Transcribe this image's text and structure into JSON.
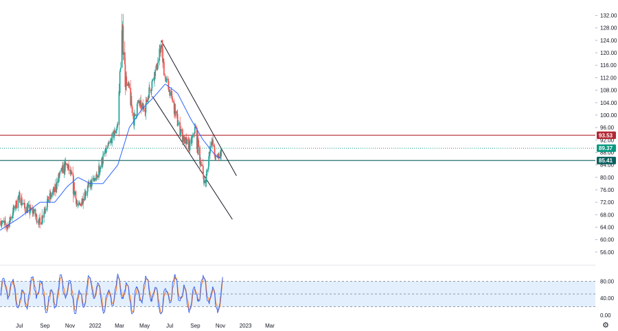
{
  "chart_data": [
    {
      "type": "candlestick",
      "series": [
        {
          "name": "",
          "kind": "candles"
        },
        {
          "name": "",
          "kind": "moving-average"
        }
      ],
      "ylim": [
        52,
        133
      ],
      "y_ticks": [
        "56.00",
        "60.00",
        "64.00",
        "68.00",
        "72.00",
        "76.00",
        "80.00",
        "84.00",
        "88.00",
        "92.00",
        "96.00",
        "100.00",
        "104.00",
        "108.00",
        "112.00",
        "116.00",
        "120.00",
        "124.00",
        "128.00",
        "132.00"
      ],
      "horizontal_levels": [
        {
          "label": "93.53",
          "value": 93.53,
          "color": "#b22833",
          "style": "solid"
        },
        {
          "label": "89.37",
          "value": 89.37,
          "color": "#089981",
          "style": "dotted"
        },
        {
          "label": "85.41",
          "value": 85.41,
          "color": "#0b5f5f",
          "style": "solid"
        }
      ],
      "channel": {
        "upper": {
          "from": [
            "2022-06-10",
            124.0
          ],
          "to": [
            "2022-12-10",
            80.5
          ]
        },
        "lower": {
          "from": [
            "2022-05-20",
            106.0
          ],
          "to": [
            "2022-11-30",
            66.5
          ]
        }
      },
      "ohlc_waypoints": {
        "dates": [
          "2021-05-15",
          "2021-06-01",
          "2021-07-01",
          "2021-07-15",
          "2021-08-05",
          "2021-08-20",
          "2021-09-05",
          "2021-09-25",
          "2021-10-10",
          "2021-10-25",
          "2021-11-05",
          "2021-11-20",
          "2021-12-01",
          "2021-12-15",
          "2022-01-05",
          "2022-01-25",
          "2022-02-10",
          "2022-02-25",
          "2022-03-05",
          "2022-03-08",
          "2022-03-15",
          "2022-03-25",
          "2022-04-05",
          "2022-04-15",
          "2022-05-01",
          "2022-05-15",
          "2022-06-01",
          "2022-06-10",
          "2022-06-20",
          "2022-07-05",
          "2022-07-20",
          "2022-08-05",
          "2022-08-20",
          "2022-09-01",
          "2022-09-10",
          "2022-09-25",
          "2022-10-10",
          "2022-10-20",
          "2022-11-03"
        ],
        "close": [
          66,
          64,
          74,
          70,
          69,
          65,
          72,
          76,
          82,
          84,
          80,
          70,
          73,
          77,
          80,
          88,
          92,
          97,
          120,
          128,
          112,
          108,
          98,
          104,
          102,
          109,
          116,
          122,
          112,
          106,
          98,
          92,
          90,
          96,
          88,
          77,
          93,
          86,
          88
        ]
      },
      "ma_waypoints": {
        "dates": [
          "2021-05-15",
          "2021-07-01",
          "2021-08-20",
          "2021-09-25",
          "2021-10-25",
          "2021-11-20",
          "2021-12-20",
          "2022-01-20",
          "2022-02-25",
          "2022-03-25",
          "2022-04-25",
          "2022-05-25",
          "2022-06-20",
          "2022-07-20",
          "2022-08-20",
          "2022-09-20",
          "2022-10-20",
          "2022-11-03"
        ],
        "values": [
          63,
          67,
          72,
          72,
          77,
          80,
          78,
          78,
          84,
          96,
          102,
          106,
          110,
          107,
          99,
          92,
          87,
          86
        ]
      }
    },
    {
      "type": "line",
      "series": [
        {
          "name": "",
          "kind": "stochastic-k"
        },
        {
          "name": "",
          "kind": "stochastic-d"
        }
      ],
      "ylim": [
        0,
        100
      ],
      "y_ticks": [
        "0.00",
        "40.00",
        "80.00"
      ],
      "band": [
        20,
        80
      ],
      "last_value": 90
    }
  ],
  "x_axis": {
    "labels": [
      {
        "text": "Jul",
        "date": "2021-07-01"
      },
      {
        "text": "Sep",
        "date": "2021-09-01"
      },
      {
        "text": "Nov",
        "date": "2021-11-01"
      },
      {
        "text": "2022",
        "date": "2022-01-01"
      },
      {
        "text": "Mar",
        "date": "2022-03-01"
      },
      {
        "text": "May",
        "date": "2022-05-01"
      },
      {
        "text": "Jul",
        "date": "2022-07-01"
      },
      {
        "text": "Sep",
        "date": "2022-09-01"
      },
      {
        "text": "Nov",
        "date": "2022-11-01"
      },
      {
        "text": "2023",
        "date": "2023-01-01"
      },
      {
        "text": "Mar",
        "date": "2023-03-01"
      }
    ]
  },
  "colors": {
    "up": "#26a69a",
    "down": "#ef5350",
    "ma": "#2962ff",
    "k": "#2962ff",
    "d": "#ff6d00",
    "band": "#e3effd",
    "grid_dash": "#787b86"
  },
  "icons": {
    "settings": "gear-icon"
  }
}
